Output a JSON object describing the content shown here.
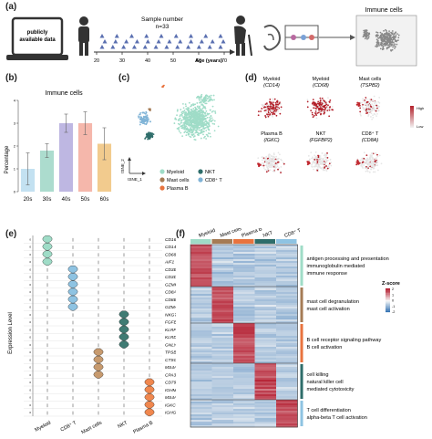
{
  "panel_labels": {
    "a": "(a)",
    "b": "(b)",
    "c": "(c)",
    "d": "(d)",
    "e": "(e)",
    "f": "(f)"
  },
  "panel_a": {
    "laptop_text": "publicly available data",
    "sample_title": "Sample number",
    "sample_n": "n=33",
    "age_ticks": [
      "20",
      "30",
      "40",
      "50",
      "60",
      "70"
    ],
    "age_label": "Age (years)",
    "immune_title": "Immune cells"
  },
  "chart_data": [
    {
      "type": "bar",
      "title": "Immune cells",
      "ylabel": "Percentage",
      "categories": [
        "20s",
        "30s",
        "40s",
        "50s",
        "60s"
      ],
      "values": [
        1.0,
        1.8,
        3.0,
        3.0,
        2.1
      ],
      "errors": [
        0.7,
        0.3,
        0.4,
        0.5,
        0.7
      ],
      "ylim": [
        0,
        4
      ],
      "yticks": [
        "0",
        "1",
        "2",
        "3",
        "4"
      ],
      "colors": [
        "#b9dcef",
        "#9dd6c6",
        "#b3aadd",
        "#f3aa9c",
        "#f0c27a"
      ]
    }
  ],
  "panel_c": {
    "axis_x": "tSNE_1",
    "axis_y": "tSNE_2",
    "legend": [
      {
        "label": "Myeloid",
        "color": "#9fdcc7"
      },
      {
        "label": "NKT",
        "color": "#2e6d6a"
      },
      {
        "label": "Mast cells",
        "color": "#a57b55"
      },
      {
        "label": "CD8⁺ T",
        "color": "#7fb3d6"
      },
      {
        "label": "Plasma B",
        "color": "#e8733e"
      }
    ]
  },
  "panel_d": {
    "maps": [
      {
        "line1": "Myeloid",
        "line2": "(CD14)"
      },
      {
        "line1": "Myeloid",
        "line2": "(CD68)"
      },
      {
        "line1": "Mast cells",
        "line2": "(TSPB2)"
      },
      {
        "line1": "Plasma B",
        "line2": "(IGKC)"
      },
      {
        "line1": "NKT",
        "line2": "(FGFBP2)"
      },
      {
        "line1": "CD8⁺ T",
        "line2": "(CD8A)"
      }
    ],
    "scale_high": "High",
    "scale_low": "Low"
  },
  "panel_e": {
    "ylabel": "Expression Level",
    "genes": [
      "CD163",
      "CD14",
      "CD68",
      "AIF1",
      "CD3E",
      "CD3D",
      "GZMK",
      "CD8A",
      "CD8B",
      "GZMA",
      "NKG7",
      "FGFBP2",
      "KLRF1",
      "KLRD1",
      "GNLY",
      "TPSB2",
      "CTSG",
      "MS4A2",
      "CPA3",
      "CD79A",
      "IGHM",
      "MS4A1",
      "IGKC",
      "IGHG1"
    ],
    "groups": [
      "Myeloid",
      "CD8⁺ T",
      "Mast cells",
      "NKT",
      "Plasma B"
    ],
    "group_colors": [
      "#9fdcc7",
      "#8ec3e2",
      "#c79a6e",
      "#3f7b73",
      "#f0874e"
    ],
    "gene_group": [
      0,
      0,
      0,
      0,
      1,
      1,
      1,
      1,
      1,
      1,
      3,
      3,
      3,
      3,
      3,
      2,
      2,
      2,
      2,
      4,
      4,
      4,
      4,
      4
    ]
  },
  "panel_f": {
    "columns": [
      "Myeloid",
      "Mast cells",
      "Plasma B",
      "NKT",
      "CD8⁺ T"
    ],
    "column_colors": [
      "#9fdcc7",
      "#a57b55",
      "#e8733e",
      "#2e6d6a",
      "#8ec3e2"
    ],
    "annotations": [
      {
        "lines": [
          "antigen processing and presentation",
          "immunoglobulin mediated",
          "immune response"
        ],
        "bar": "#9fdcc7"
      },
      {
        "lines": [
          "mast cell degranulation",
          "mast cell activation"
        ],
        "bar": "#a57b55"
      },
      {
        "lines": [
          "B cell receptor signaling pathway",
          "B cell activation"
        ],
        "bar": "#e8733e"
      },
      {
        "lines": [
          "cell killing",
          "natural killer cell",
          "mediated cytotoxicity"
        ],
        "bar": "#2e6d6a"
      },
      {
        "lines": [
          "T cell differentiation",
          "alpha-beta T cell activation"
        ],
        "bar": "#8ec3e2"
      }
    ],
    "zscore_label": "Z-score",
    "zscore_ticks": [
      "2",
      "1",
      "0",
      "-1",
      "-2"
    ]
  }
}
